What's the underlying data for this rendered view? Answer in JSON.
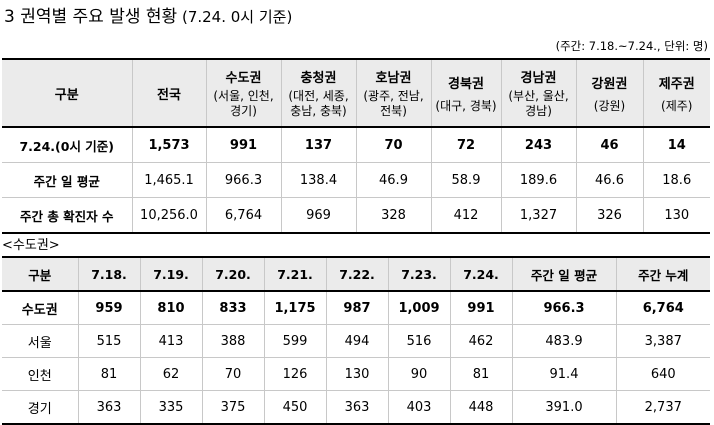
{
  "title": {
    "main": "3 권역별 주요 발생 현황",
    "sub": " (7.24. 0시 기준)"
  },
  "unit_note": "(주간: 7.18.~7.24., 단위: 명)",
  "section_label": "<수도권>",
  "regional_table": {
    "header_label": "구분",
    "national_label": "전국",
    "regions": [
      {
        "name": "수도권",
        "sub": [
          "(서울, 인천,",
          "경기)"
        ]
      },
      {
        "name": "충청권",
        "sub": [
          "(대전, 세종,",
          "충남, 충북)"
        ]
      },
      {
        "name": "호남권",
        "sub": [
          "(광주, 전남,",
          "전북)"
        ]
      },
      {
        "name": "경북권",
        "sub": [
          "(대구, 경북)"
        ]
      },
      {
        "name": "경남권",
        "sub": [
          "(부산, 울산,",
          "경남)"
        ]
      },
      {
        "name": "강원권",
        "sub": [
          "(강원)"
        ]
      },
      {
        "name": "제주권",
        "sub": [
          "(제주)"
        ]
      }
    ],
    "rows": [
      {
        "label": "7.24.(0시 기준)",
        "values": [
          "1,573",
          "991",
          "137",
          "70",
          "72",
          "243",
          "46",
          "14"
        ]
      },
      {
        "label": "주간 일 평균",
        "values": [
          "1,465.1",
          "966.3",
          "138.4",
          "46.9",
          "58.9",
          "189.6",
          "46.6",
          "18.6"
        ]
      },
      {
        "label": "주간 총 확진자 수",
        "values": [
          "10,256.0",
          "6,764",
          "969",
          "328",
          "412",
          "1,327",
          "326",
          "130"
        ]
      }
    ]
  },
  "capital_table": {
    "headers": [
      "구분",
      "7.18.",
      "7.19.",
      "7.20.",
      "7.21.",
      "7.22.",
      "7.23.",
      "7.24.",
      "주간 일 평균",
      "주간 누계"
    ],
    "rows": [
      {
        "label": "수도권",
        "values": [
          "959",
          "810",
          "833",
          "1,175",
          "987",
          "1,009",
          "991",
          "966.3",
          "6,764"
        ]
      },
      {
        "label": "서울",
        "values": [
          "515",
          "413",
          "388",
          "599",
          "494",
          "516",
          "462",
          "483.9",
          "3,387"
        ]
      },
      {
        "label": "인천",
        "values": [
          "81",
          "62",
          "70",
          "126",
          "130",
          "90",
          "81",
          "91.4",
          "640"
        ]
      },
      {
        "label": "경기",
        "values": [
          "363",
          "335",
          "375",
          "450",
          "363",
          "403",
          "448",
          "391.0",
          "2,737"
        ]
      }
    ]
  }
}
